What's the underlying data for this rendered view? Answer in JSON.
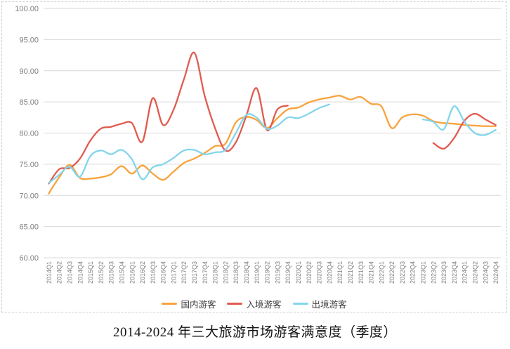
{
  "title": "2014-2024 年三大旅游市场游客满意度（季度）",
  "chart_data": {
    "type": "line",
    "smooth": true,
    "grid": "horizontal",
    "legend_position": "bottom",
    "ylim": [
      60,
      100
    ],
    "ytick_step": 5,
    "y_tick_labels": [
      "100.00",
      "95.00",
      "90.00",
      "85.00",
      "80.00",
      "75.00",
      "70.00",
      "65.00",
      "60.00"
    ],
    "categories": [
      "2014Q1",
      "2014Q2",
      "2014Q3",
      "2014Q4",
      "2015Q1",
      "2015Q2",
      "2015Q3",
      "2015Q4",
      "2016Q1",
      "2016Q2",
      "2016Q3",
      "2016Q4",
      "2017Q1",
      "2017Q2",
      "2017Q3",
      "2017Q4",
      "2018Q1",
      "2018Q2",
      "2018Q3",
      "2018Q4",
      "2019Q1",
      "2019Q2",
      "2019Q3",
      "2019Q4",
      "2020Q1",
      "2020Q2",
      "2020Q3",
      "2020Q4",
      "2021Q1",
      "2021Q2",
      "2021Q3",
      "2021Q4",
      "2022Q1",
      "2022Q2",
      "2022Q3",
      "2022Q4",
      "2023Q1",
      "2023Q2",
      "2023Q3",
      "2023Q4",
      "2024Q1",
      "2024Q2",
      "2024Q3",
      "2024Q4"
    ],
    "series": [
      {
        "id": "domestic-tourists",
        "name": "国内游客",
        "color": "#F9A23C",
        "values": [
          70.3,
          72.9,
          74.9,
          72.8,
          72.7,
          72.9,
          73.4,
          74.7,
          73.5,
          74.8,
          73.5,
          72.5,
          73.8,
          75.2,
          75.9,
          76.8,
          77.9,
          78.3,
          81.7,
          82.6,
          82.1,
          80.8,
          82.4,
          83.8,
          84.1,
          84.9,
          85.4,
          85.7,
          86.0,
          85.4,
          85.8,
          84.7,
          84.3,
          80.8,
          82.5,
          83.0,
          82.8,
          81.9,
          81.6,
          81.5,
          81.3,
          81.2,
          81.1,
          81.1
        ]
      },
      {
        "id": "inbound-tourists",
        "name": "入境游客",
        "color": "#E15B50",
        "values": [
          71.9,
          74.2,
          74.4,
          75.9,
          78.8,
          80.7,
          81.0,
          81.5,
          81.6,
          78.6,
          85.6,
          81.3,
          83.7,
          88.6,
          92.9,
          86.0,
          80.8,
          77.2,
          78.5,
          82.7,
          87.2,
          80.5,
          83.8,
          84.4,
          null,
          null,
          null,
          null,
          null,
          null,
          null,
          null,
          null,
          null,
          null,
          null,
          null,
          78.4,
          77.5,
          79.2,
          82.0,
          83.1,
          82.2,
          81.3
        ]
      },
      {
        "id": "outbound-tourists",
        "name": "出境游客",
        "color": "#84D5EC",
        "values": [
          72.0,
          73.3,
          74.6,
          73.0,
          76.3,
          77.2,
          76.6,
          77.3,
          75.8,
          72.6,
          74.5,
          75.0,
          76.0,
          77.2,
          77.3,
          76.6,
          76.9,
          77.3,
          80.0,
          82.9,
          82.5,
          80.7,
          81.2,
          82.5,
          82.4,
          83.1,
          84.0,
          84.6,
          null,
          null,
          null,
          null,
          null,
          null,
          null,
          null,
          82.2,
          81.8,
          80.6,
          84.3,
          81.8,
          80.0,
          79.7,
          80.5
        ]
      }
    ]
  },
  "colors": {
    "gridline": "#d9d9d9",
    "axis_text": "#7f7f7f",
    "legend_text": "#3f3f3f"
  }
}
